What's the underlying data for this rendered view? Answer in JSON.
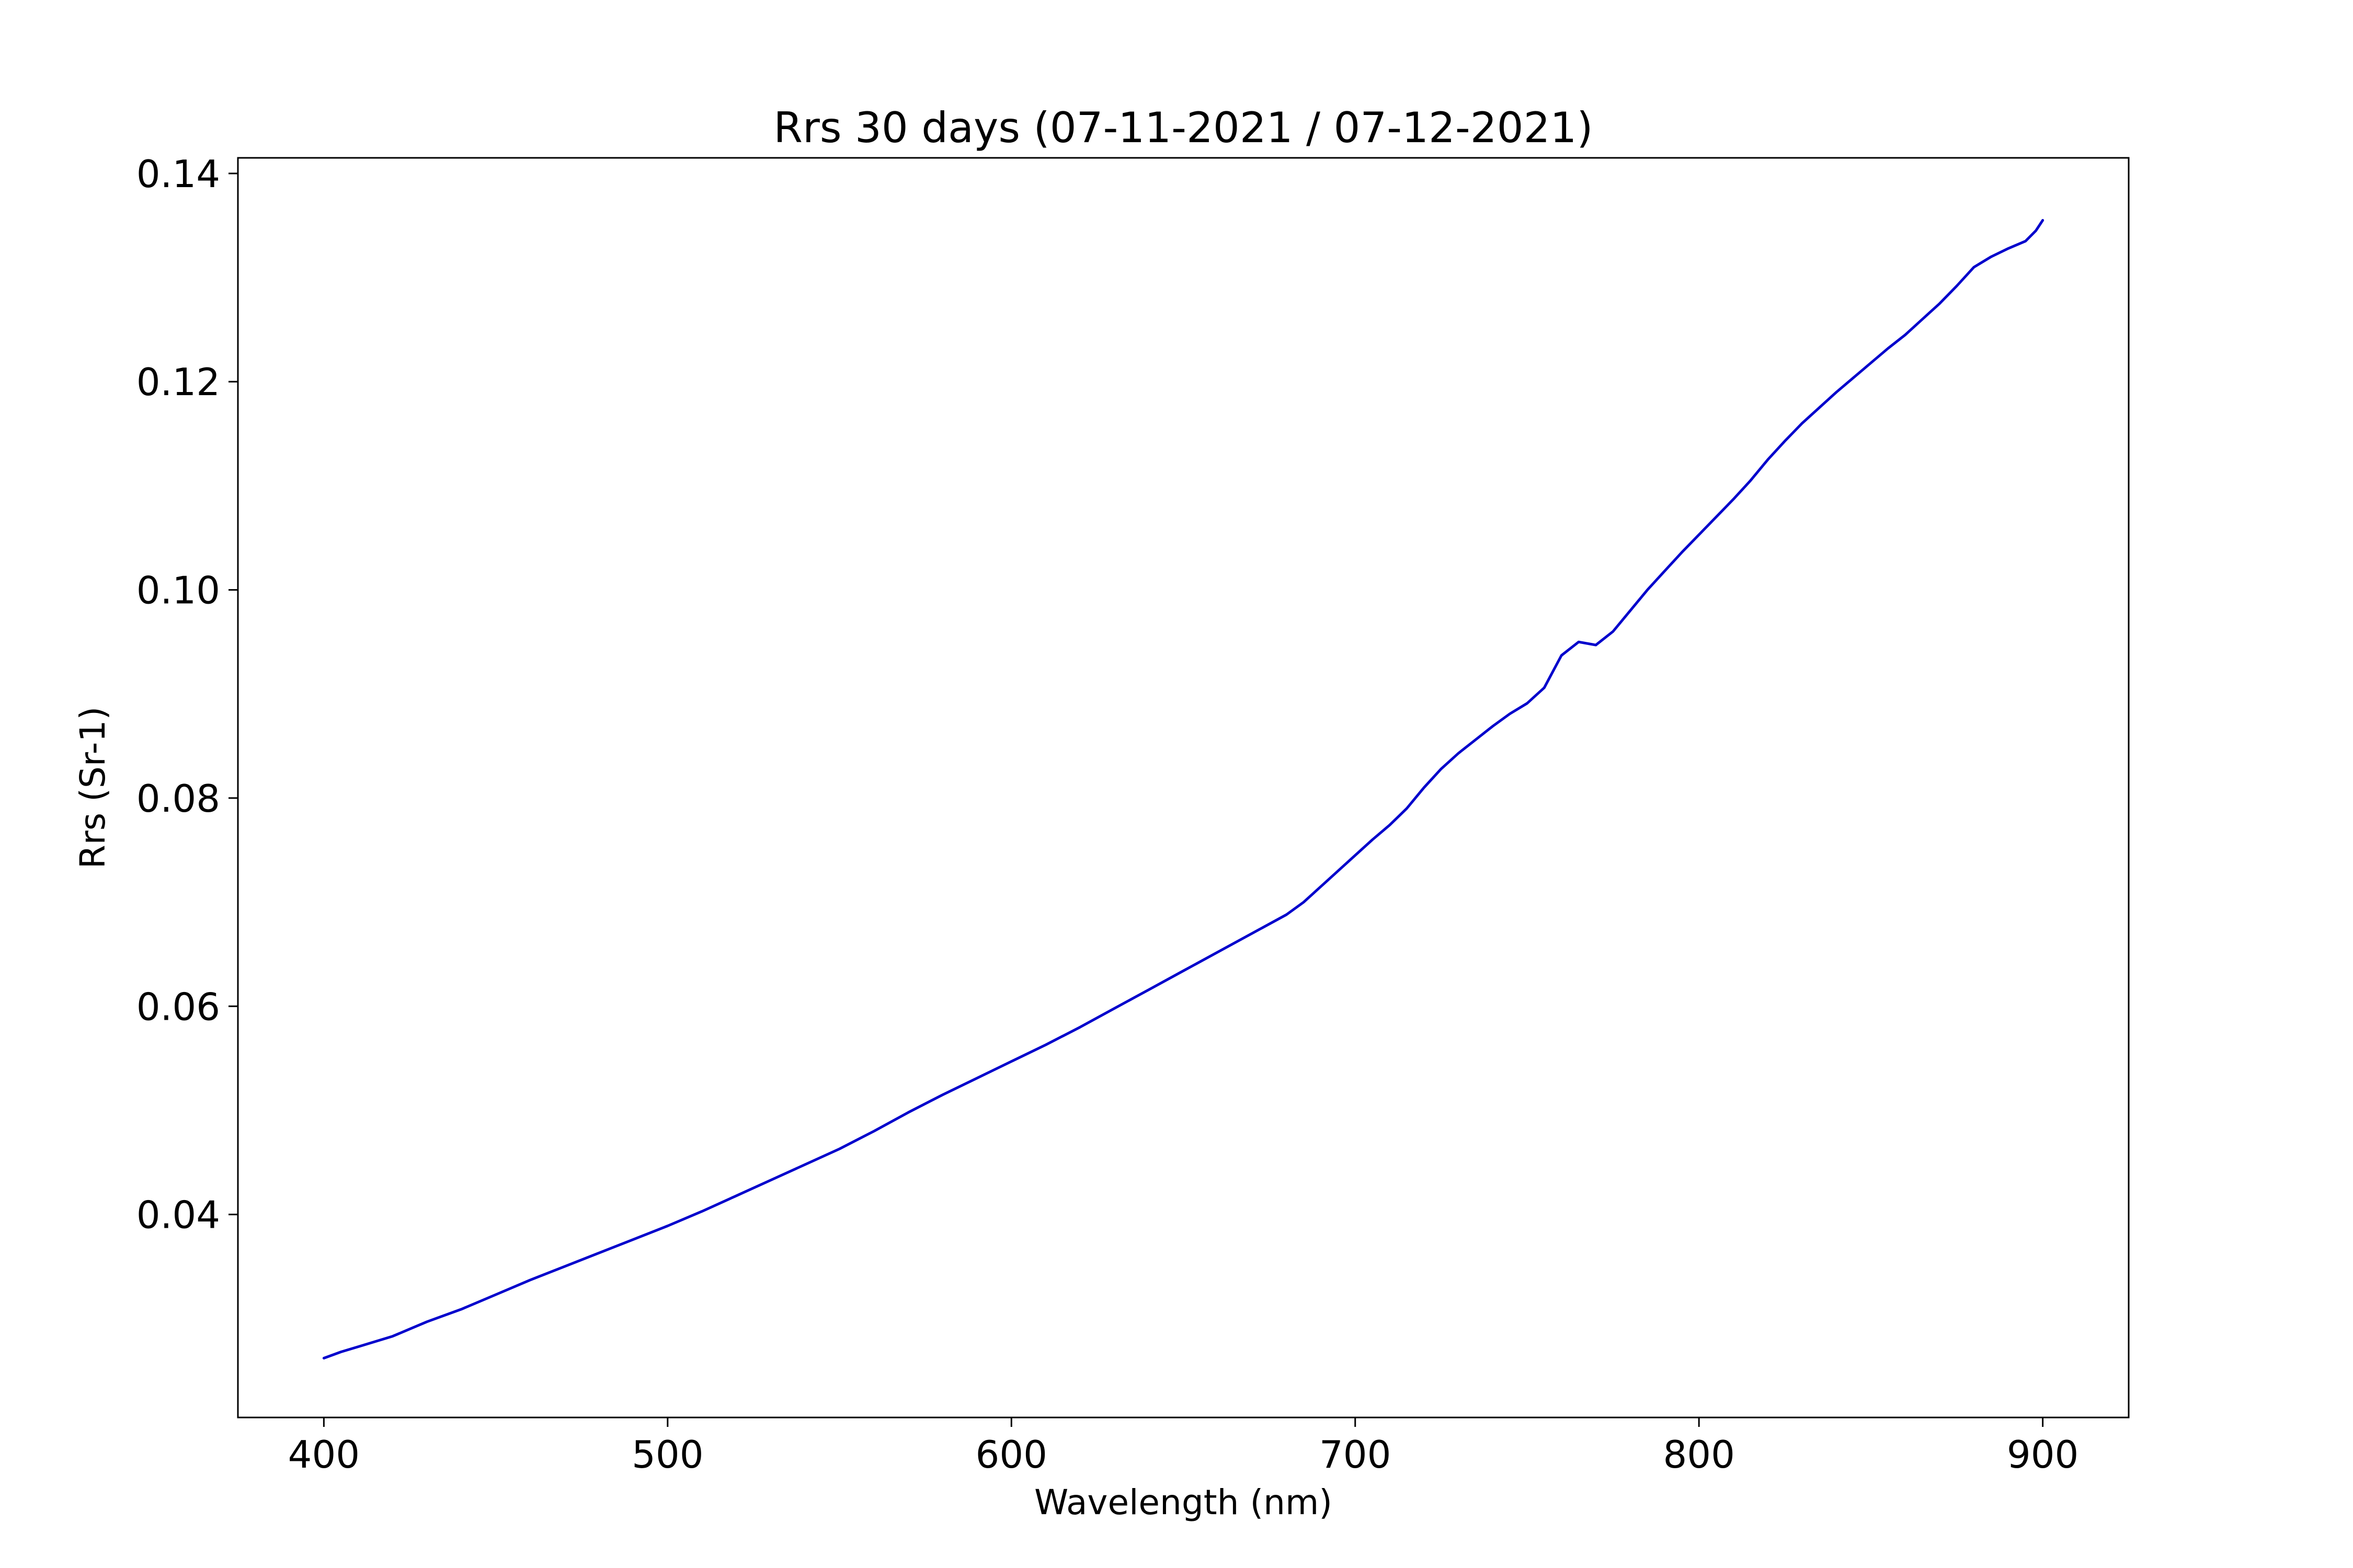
{
  "chart_data": {
    "type": "line",
    "title": "Rrs 30 days (07-11-2021 / 07-12-2021)",
    "xlabel": "Wavelength (nm)",
    "ylabel": "Rrs (Sr-1)",
    "xlim": [
      375,
      925
    ],
    "ylim": [
      0.0205,
      0.1415
    ],
    "xticks": [
      400,
      500,
      600,
      700,
      800,
      900
    ],
    "xtick_labels": [
      "400",
      "500",
      "600",
      "700",
      "800",
      "900"
    ],
    "yticks": [
      0.04,
      0.06,
      0.08,
      0.1,
      0.12,
      0.14
    ],
    "ytick_labels": [
      "0.04",
      "0.06",
      "0.08",
      "0.10",
      "0.12",
      "0.14"
    ],
    "grid": false,
    "legend": false,
    "series": [
      {
        "color": "#0000cc",
        "x": [
          400,
          405,
          410,
          420,
          430,
          440,
          450,
          460,
          470,
          480,
          490,
          500,
          510,
          520,
          530,
          540,
          550,
          560,
          570,
          580,
          590,
          600,
          610,
          620,
          630,
          640,
          650,
          660,
          670,
          680,
          685,
          690,
          695,
          700,
          705,
          710,
          715,
          720,
          725,
          730,
          735,
          740,
          745,
          750,
          755,
          760,
          765,
          770,
          775,
          780,
          785,
          790,
          795,
          800,
          805,
          810,
          815,
          820,
          825,
          830,
          835,
          840,
          845,
          850,
          855,
          860,
          865,
          870,
          875,
          880,
          885,
          890,
          895,
          898,
          900
        ],
        "y": [
          0.0262,
          0.0268,
          0.0273,
          0.0283,
          0.0297,
          0.0309,
          0.0323,
          0.0337,
          0.035,
          0.0363,
          0.0376,
          0.0389,
          0.0403,
          0.0418,
          0.0433,
          0.0448,
          0.0463,
          0.048,
          0.0498,
          0.0515,
          0.0531,
          0.0547,
          0.0563,
          0.058,
          0.0598,
          0.0616,
          0.0634,
          0.0652,
          0.067,
          0.0688,
          0.07,
          0.0715,
          0.073,
          0.0745,
          0.076,
          0.0774,
          0.079,
          0.081,
          0.0828,
          0.0843,
          0.0856,
          0.0869,
          0.0881,
          0.0891,
          0.0906,
          0.0937,
          0.095,
          0.0947,
          0.096,
          0.098,
          0.1,
          0.1018,
          0.1036,
          0.1053,
          0.107,
          0.1087,
          0.1105,
          0.1125,
          0.1143,
          0.116,
          0.1175,
          0.119,
          0.1204,
          0.1218,
          0.1232,
          0.1245,
          0.126,
          0.1275,
          0.1292,
          0.131,
          0.132,
          0.1328,
          0.1335,
          0.1345,
          0.1355
        ]
      }
    ]
  }
}
